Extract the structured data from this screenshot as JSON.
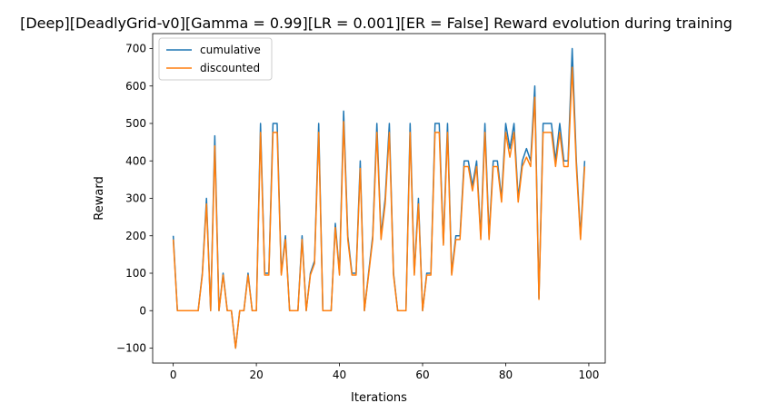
{
  "chart_data": {
    "type": "line",
    "title": "[Deep][DeadlyGrid-v0][Gamma = 0.99][LR = 0.001][ER = False] Reward evolution during training",
    "xlabel": "Iterations",
    "ylabel": "Reward",
    "xlim": [
      -4.95,
      103.95
    ],
    "ylim": [
      -140,
      740
    ],
    "xticks": [
      0,
      20,
      40,
      60,
      80,
      100
    ],
    "yticks": [
      -100,
      0,
      100,
      200,
      300,
      400,
      500,
      600,
      700
    ],
    "grid": false,
    "legend": "top-left",
    "x": [
      0,
      1,
      2,
      3,
      4,
      5,
      6,
      7,
      8,
      9,
      10,
      11,
      12,
      13,
      14,
      15,
      16,
      17,
      18,
      19,
      20,
      21,
      22,
      23,
      24,
      25,
      26,
      27,
      28,
      29,
      30,
      31,
      32,
      33,
      34,
      35,
      36,
      37,
      38,
      39,
      40,
      41,
      42,
      43,
      44,
      45,
      46,
      47,
      48,
      49,
      50,
      51,
      52,
      53,
      54,
      55,
      56,
      57,
      58,
      59,
      60,
      61,
      62,
      63,
      64,
      65,
      66,
      67,
      68,
      69,
      70,
      71,
      72,
      73,
      74,
      75,
      76,
      77,
      78,
      79,
      80,
      81,
      82,
      83,
      84,
      85,
      86,
      87,
      88,
      89,
      90,
      91,
      92,
      93,
      94,
      95,
      96,
      97,
      98,
      99
    ],
    "series": [
      {
        "name": "cumulative",
        "color": "#1f77b4",
        "values": [
          200,
          0,
          0,
          0,
          0,
          0,
          0,
          100,
          300,
          0,
          467,
          0,
          100,
          0,
          0,
          -100,
          0,
          0,
          100,
          0,
          0,
          500,
          100,
          100,
          500,
          500,
          100,
          200,
          0,
          0,
          0,
          200,
          0,
          100,
          133,
          500,
          0,
          0,
          0,
          233,
          100,
          533,
          200,
          100,
          100,
          400,
          0,
          100,
          200,
          500,
          200,
          300,
          500,
          100,
          0,
          0,
          0,
          500,
          100,
          300,
          0,
          100,
          100,
          500,
          500,
          180,
          500,
          100,
          200,
          200,
          400,
          400,
          333,
          400,
          200,
          500,
          200,
          400,
          400,
          300,
          500,
          433,
          500,
          300,
          400,
          433,
          400,
          600,
          33,
          500,
          500,
          500,
          400,
          500,
          400,
          400,
          700,
          400,
          200,
          400
        ]
      },
      {
        "name": "discounted",
        "color": "#ff7f0e",
        "values": [
          190,
          0,
          0,
          0,
          0,
          0,
          0,
          95,
          285,
          0,
          440,
          0,
          95,
          0,
          0,
          -100,
          0,
          0,
          95,
          0,
          0,
          476,
          95,
          95,
          476,
          476,
          95,
          190,
          0,
          0,
          0,
          190,
          0,
          95,
          126,
          476,
          0,
          0,
          0,
          222,
          95,
          505,
          190,
          95,
          95,
          380,
          0,
          95,
          190,
          476,
          190,
          285,
          476,
          95,
          0,
          0,
          0,
          476,
          95,
          285,
          0,
          95,
          95,
          476,
          476,
          175,
          476,
          95,
          190,
          190,
          385,
          385,
          320,
          385,
          190,
          476,
          190,
          385,
          385,
          290,
          476,
          410,
          476,
          290,
          385,
          410,
          385,
          570,
          30,
          476,
          476,
          476,
          385,
          476,
          385,
          385,
          650,
          385,
          190,
          385
        ]
      }
    ]
  }
}
